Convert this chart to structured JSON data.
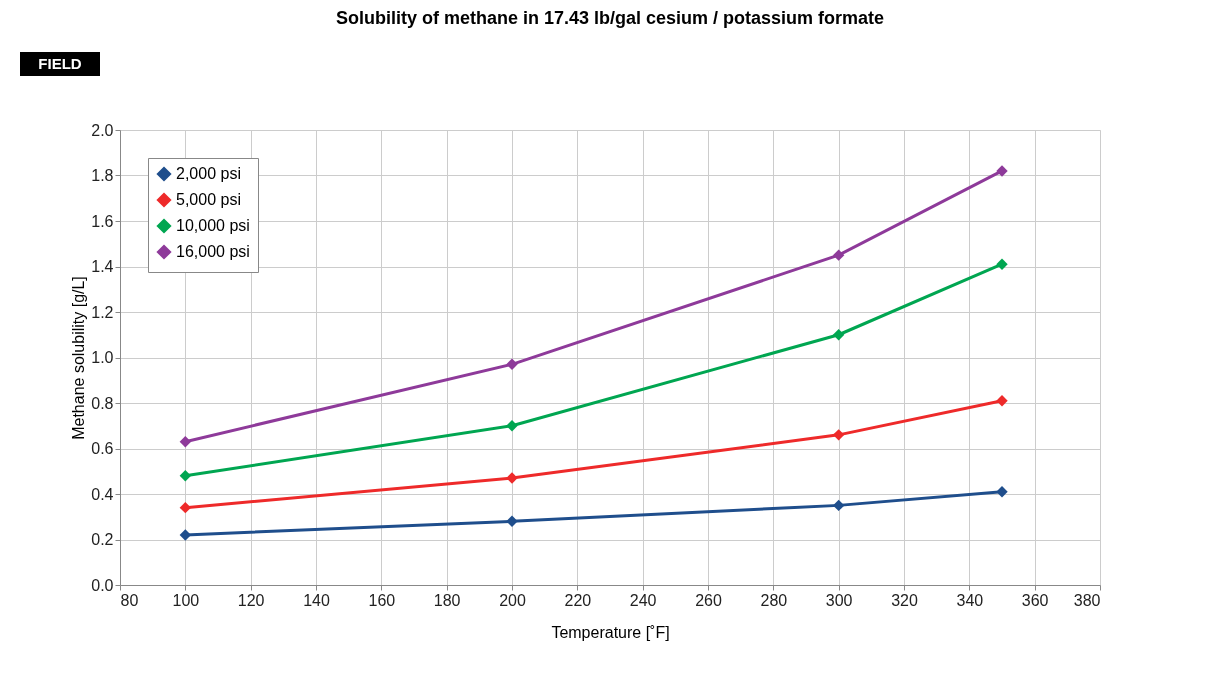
{
  "chart_data": {
    "type": "line",
    "title": "Solubility of methane in 17.43 lb/gal cesium / potassium formate",
    "xlabel": "Temperature [˚F]",
    "ylabel": "Methane solubility [g/L]",
    "annotations": [
      "FIELD"
    ],
    "x": [
      100,
      200,
      300,
      350
    ],
    "series": [
      {
        "name": "2,000 psi",
        "color": "#1f4e8c",
        "values": [
          0.22,
          0.28,
          0.35,
          0.41
        ]
      },
      {
        "name": "5,000 psi",
        "color": "#ee2a2a",
        "values": [
          0.34,
          0.47,
          0.66,
          0.81
        ]
      },
      {
        "name": "10,000 psi",
        "color": "#00a651",
        "values": [
          0.48,
          0.7,
          1.1,
          1.41
        ]
      },
      {
        "name": "16,000 psi",
        "color": "#8e3a9a",
        "values": [
          0.63,
          0.97,
          1.45,
          1.82
        ]
      }
    ],
    "xlim": [
      80,
      380
    ],
    "xticks": [
      80,
      100,
      120,
      140,
      160,
      180,
      200,
      220,
      240,
      260,
      280,
      300,
      320,
      340,
      360,
      380
    ],
    "ylim": [
      0,
      2
    ],
    "yticks": [
      {
        "value": 0,
        "label": "0.0"
      },
      {
        "value": 0.2,
        "label": "0.2"
      },
      {
        "value": 0.4,
        "label": "0.4"
      },
      {
        "value": 0.6,
        "label": "0.6"
      },
      {
        "value": 0.8,
        "label": "0.8"
      },
      {
        "value": 1.0,
        "label": "1.0"
      },
      {
        "value": 1.2,
        "label": "1.2"
      },
      {
        "value": 1.4,
        "label": "1.4"
      },
      {
        "value": 1.6,
        "label": "1.6"
      },
      {
        "value": 1.8,
        "label": "1.8"
      },
      {
        "value": 2.0,
        "label": "2.0"
      }
    ],
    "grid": true,
    "legend": "top left",
    "marker": "diamond",
    "line_style": "solid"
  }
}
